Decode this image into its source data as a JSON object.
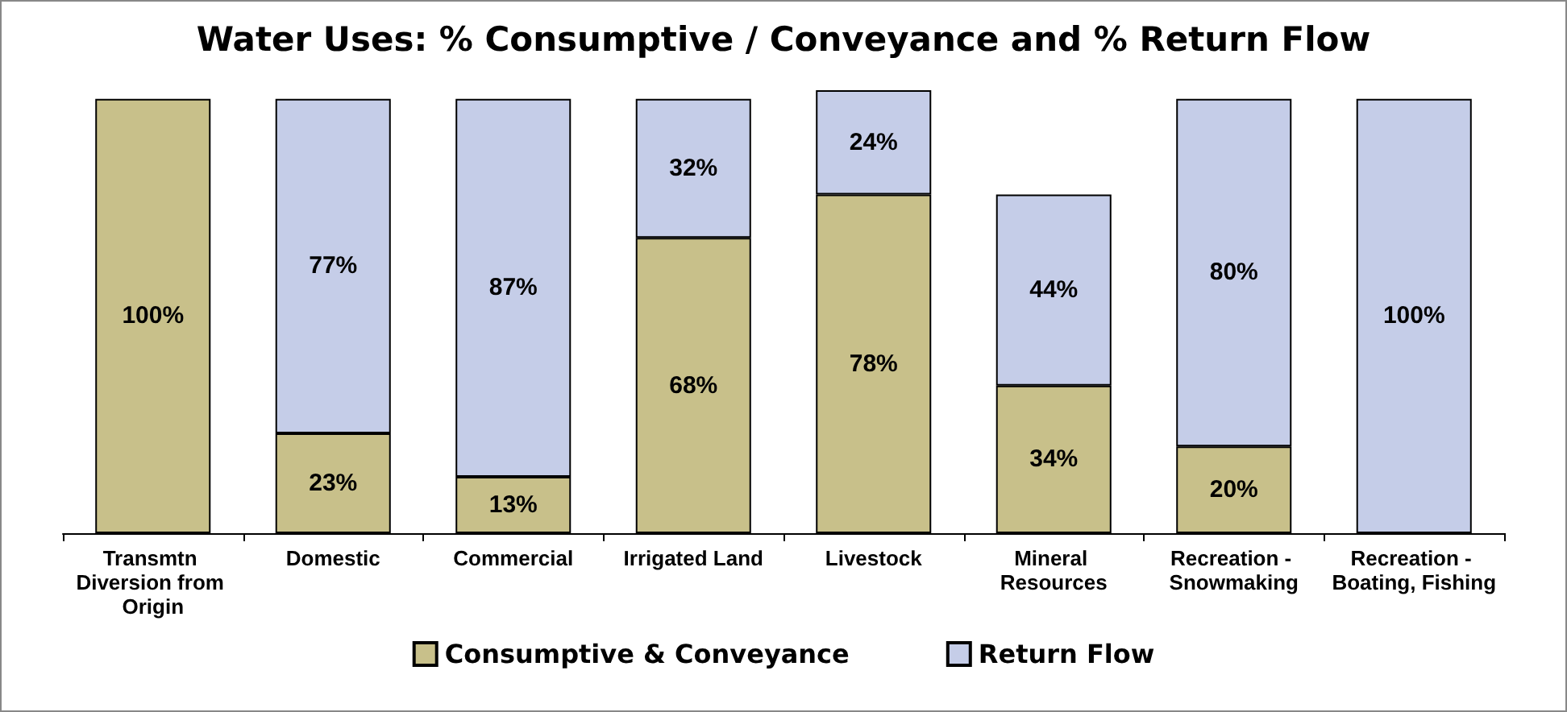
{
  "chart_data": {
    "type": "bar",
    "title": "Water Uses: % Consumptive / Conveyance and % Return Flow",
    "categories": [
      "Transmtn Diversion from Origin",
      "Domestic",
      "Commercial",
      "Irrigated Land",
      "Livestock",
      "Mineral Resources",
      "Recreation - Snowmaking",
      "Recreation - Boating, Fishing"
    ],
    "stacked": true,
    "series": [
      {
        "name": "Consumptive & Conveyance",
        "color": "#c8c08a",
        "values": [
          100,
          23,
          13,
          68,
          78,
          34,
          20,
          0
        ],
        "value_labels": [
          "100%",
          "23%",
          "13%",
          "68%",
          "78%",
          "34%",
          "20%",
          null
        ]
      },
      {
        "name": "Return Flow",
        "color": "#c5cde8",
        "values": [
          0,
          77,
          87,
          32,
          24,
          44,
          80,
          100
        ],
        "value_labels": [
          null,
          "77%",
          "87%",
          "32%",
          "24%",
          "44%",
          "80%",
          "100%"
        ]
      }
    ],
    "legend": "bottom",
    "tick_labels": "x"
  }
}
